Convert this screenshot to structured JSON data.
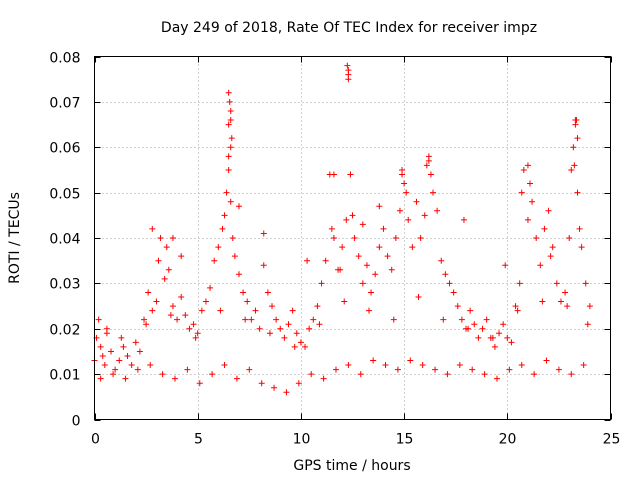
{
  "chart_data": {
    "type": "scatter",
    "title": "Day 249 of 2018, Rate Of TEC Index for receiver impz",
    "xlabel": "GPS time / hours",
    "ylabel": "ROTI / TECUs",
    "xlim": [
      0,
      25
    ],
    "ylim": [
      0,
      0.08
    ],
    "xticks": [
      "0",
      "5",
      "10",
      "15",
      "20",
      "25"
    ],
    "xtick_values": [
      0,
      5,
      10,
      15,
      20,
      25
    ],
    "yticks": [
      "0",
      "0.01",
      "0.02",
      "0.03",
      "0.04",
      "0.05",
      "0.06",
      "0.07",
      "0.08"
    ],
    "ytick_values": [
      0,
      0.01,
      0.02,
      0.03,
      0.04,
      0.05,
      0.06,
      0.07,
      0.08
    ],
    "grid": true,
    "marker": "+",
    "marker_color": "#ff0000",
    "series": [
      {
        "name": "ROTI",
        "x": [
          0.0,
          0.1,
          0.2,
          0.3,
          0.4,
          0.5,
          0.6,
          0.8,
          1.0,
          1.2,
          1.4,
          1.6,
          1.8,
          2.0,
          2.2,
          2.4,
          2.6,
          2.8,
          3.0,
          3.1,
          3.2,
          3.4,
          3.5,
          3.6,
          3.8,
          4.0,
          4.2,
          4.4,
          4.6,
          4.8,
          5.0,
          5.2,
          5.4,
          5.6,
          5.8,
          6.0,
          6.2,
          6.3,
          6.4,
          6.5,
          6.5,
          6.5,
          6.6,
          6.6,
          6.6,
          6.7,
          6.8,
          7.0,
          7.2,
          7.4,
          7.6,
          7.8,
          8.0,
          8.2,
          8.4,
          8.6,
          8.8,
          9.0,
          9.2,
          9.4,
          9.6,
          9.8,
          10.0,
          10.2,
          10.4,
          10.6,
          10.8,
          11.0,
          11.2,
          11.4,
          11.6,
          11.8,
          12.0,
          12.2,
          12.3,
          12.3,
          12.4,
          12.5,
          12.6,
          12.8,
          13.0,
          13.2,
          13.4,
          13.6,
          13.8,
          14.0,
          14.2,
          14.4,
          14.6,
          14.8,
          14.9,
          15.0,
          15.2,
          15.4,
          15.6,
          15.8,
          16.0,
          16.2,
          16.3,
          16.4,
          16.6,
          16.8,
          17.0,
          17.2,
          17.4,
          17.6,
          17.8,
          18.0,
          18.2,
          18.4,
          18.6,
          18.8,
          19.0,
          19.2,
          19.4,
          19.6,
          19.8,
          20.0,
          20.2,
          20.4,
          20.6,
          20.7,
          20.8,
          21.0,
          21.2,
          21.4,
          21.6,
          21.8,
          22.0,
          22.2,
          22.4,
          22.6,
          22.8,
          23.0,
          23.1,
          23.2,
          23.3,
          23.4,
          23.5,
          23.6,
          23.8,
          24.0,
          0.3,
          0.9,
          1.5,
          2.1,
          2.7,
          3.3,
          3.9,
          4.5,
          5.1,
          5.7,
          6.3,
          6.9,
          7.5,
          8.1,
          8.7,
          9.3,
          9.9,
          10.5,
          11.1,
          11.7,
          12.3,
          12.9,
          13.5,
          14.1,
          14.7,
          15.3,
          15.9,
          16.5,
          17.1,
          17.7,
          18.3,
          18.9,
          19.5,
          20.1,
          20.7,
          21.3,
          21.9,
          22.5,
          23.1,
          23.7,
          0.6,
          1.3,
          2.5,
          3.7,
          4.9,
          6.1,
          7.3,
          8.5,
          9.7,
          10.9,
          12.1,
          13.3,
          14.5,
          15.7,
          16.9,
          18.1,
          19.3,
          20.5,
          21.7,
          22.9,
          23.9,
          6.55,
          6.6,
          6.65,
          6.5,
          12.25,
          12.3,
          11.5,
          11.6,
          16.2,
          16.1,
          21.0,
          21.1,
          23.3,
          23.35,
          23.25,
          23.4,
          14.9,
          15.1,
          13.0,
          13.8,
          7.0,
          8.2,
          3.8,
          2.8,
          10.3,
          11.9,
          17.9,
          19.9,
          22.1,
          4.2
        ],
        "y": [
          0.013,
          0.018,
          0.022,
          0.016,
          0.014,
          0.012,
          0.019,
          0.015,
          0.011,
          0.013,
          0.016,
          0.014,
          0.012,
          0.017,
          0.015,
          0.022,
          0.028,
          0.024,
          0.026,
          0.035,
          0.04,
          0.031,
          0.038,
          0.033,
          0.025,
          0.022,
          0.027,
          0.023,
          0.02,
          0.021,
          0.019,
          0.024,
          0.026,
          0.029,
          0.035,
          0.038,
          0.042,
          0.045,
          0.05,
          0.055,
          0.065,
          0.072,
          0.068,
          0.06,
          0.048,
          0.04,
          0.036,
          0.032,
          0.028,
          0.026,
          0.022,
          0.024,
          0.02,
          0.034,
          0.028,
          0.025,
          0.022,
          0.02,
          0.018,
          0.021,
          0.024,
          0.019,
          0.017,
          0.016,
          0.02,
          0.022,
          0.025,
          0.03,
          0.035,
          0.054,
          0.04,
          0.033,
          0.038,
          0.044,
          0.077,
          0.075,
          0.054,
          0.045,
          0.04,
          0.036,
          0.03,
          0.034,
          0.028,
          0.032,
          0.038,
          0.042,
          0.036,
          0.033,
          0.04,
          0.046,
          0.055,
          0.052,
          0.044,
          0.038,
          0.048,
          0.04,
          0.045,
          0.057,
          0.054,
          0.05,
          0.046,
          0.035,
          0.032,
          0.03,
          0.028,
          0.025,
          0.022,
          0.02,
          0.024,
          0.021,
          0.018,
          0.02,
          0.022,
          0.018,
          0.016,
          0.019,
          0.021,
          0.018,
          0.017,
          0.025,
          0.03,
          0.05,
          0.055,
          0.044,
          0.048,
          0.04,
          0.034,
          0.042,
          0.046,
          0.038,
          0.03,
          0.026,
          0.028,
          0.04,
          0.055,
          0.06,
          0.066,
          0.05,
          0.042,
          0.038,
          0.03,
          0.025,
          0.009,
          0.01,
          0.009,
          0.011,
          0.012,
          0.01,
          0.009,
          0.011,
          0.008,
          0.01,
          0.012,
          0.009,
          0.011,
          0.008,
          0.007,
          0.006,
          0.008,
          0.01,
          0.009,
          0.011,
          0.012,
          0.01,
          0.013,
          0.012,
          0.011,
          0.013,
          0.012,
          0.011,
          0.01,
          0.012,
          0.011,
          0.01,
          0.009,
          0.011,
          0.012,
          0.01,
          0.013,
          0.011,
          0.01,
          0.012,
          0.02,
          0.018,
          0.021,
          0.023,
          0.018,
          0.024,
          0.022,
          0.019,
          0.016,
          0.021,
          0.026,
          0.024,
          0.022,
          0.027,
          0.022,
          0.02,
          0.018,
          0.024,
          0.026,
          0.025,
          0.021,
          0.07,
          0.066,
          0.062,
          0.058,
          0.078,
          0.076,
          0.042,
          0.054,
          0.058,
          0.056,
          0.056,
          0.052,
          0.065,
          0.066,
          0.056,
          0.062,
          0.054,
          0.05,
          0.043,
          0.047,
          0.047,
          0.041,
          0.04,
          0.042,
          0.035,
          0.033,
          0.044,
          0.034,
          0.036,
          0.036
        ],
        "color": "#ff0000"
      }
    ]
  }
}
